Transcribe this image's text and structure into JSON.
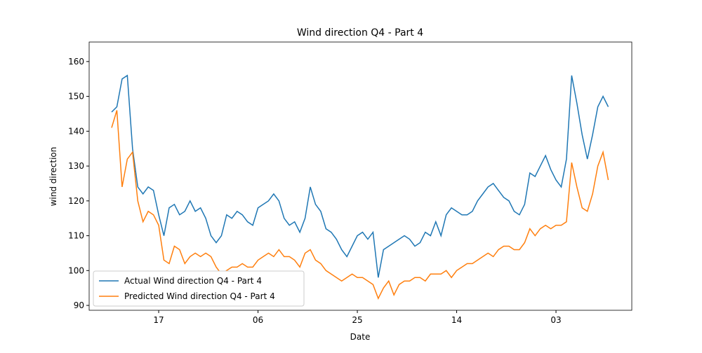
{
  "chart_data": {
    "type": "line",
    "title": "Wind direction Q4 - Part 4",
    "x_label": "Date",
    "y_label": "wind direction",
    "x": [
      -9,
      -8,
      -7,
      -6,
      -5,
      -4,
      -3,
      -2,
      -1,
      0,
      1,
      2,
      3,
      4,
      5,
      6,
      7,
      8,
      9,
      10,
      11,
      12,
      13,
      14,
      15,
      16,
      17,
      18,
      19,
      20,
      21,
      22,
      23,
      24,
      25,
      26,
      27,
      28,
      29,
      30,
      31,
      32,
      33,
      34,
      35,
      36,
      37,
      38,
      39,
      40,
      41,
      42,
      43,
      44,
      45,
      46,
      47,
      48,
      49,
      50,
      51,
      52,
      53,
      54,
      55,
      56,
      57,
      58,
      59,
      60,
      61,
      62,
      63,
      64,
      65,
      66,
      67,
      68,
      69,
      70,
      71,
      72,
      73,
      74,
      75,
      76,
      77,
      78,
      79,
      80,
      81,
      82,
      83,
      84,
      85,
      86
    ],
    "series": [
      {
        "name": "Actual Wind direction Q4 - Part 4",
        "color": "#1f77b4",
        "values": [
          145.5,
          147,
          155,
          156,
          135,
          124,
          122,
          124,
          123,
          116,
          110,
          118,
          119,
          116,
          117,
          120,
          117,
          118,
          115,
          110,
          108,
          110,
          116,
          115,
          117,
          116,
          114,
          113,
          118,
          119,
          120,
          122,
          120,
          115,
          113,
          114,
          111,
          115,
          124,
          119,
          117,
          112,
          111,
          109,
          106,
          104,
          107,
          110,
          111,
          109,
          111,
          98,
          106,
          107,
          108,
          109,
          110,
          109,
          107,
          108,
          111,
          110,
          114,
          110,
          116,
          118,
          117,
          116,
          116,
          117,
          120,
          122,
          124,
          125,
          123,
          121,
          120,
          117,
          116,
          119,
          128,
          127,
          130,
          133,
          129,
          126,
          124,
          132,
          156,
          148,
          139,
          132,
          139,
          147,
          150,
          147
        ]
      },
      {
        "name": "Predicted Wind direction Q4 - Part 4",
        "color": "#ff7f0e",
        "values": [
          141,
          146,
          124,
          132,
          134,
          120,
          114,
          117,
          116,
          113,
          103,
          102,
          107,
          106,
          102,
          104,
          105,
          104,
          105,
          104,
          101,
          99,
          100,
          101,
          101,
          102,
          101,
          101,
          103,
          104,
          105,
          104,
          106,
          104,
          104,
          103,
          101,
          105,
          106,
          103,
          102,
          100,
          99,
          98,
          97,
          98,
          99,
          98,
          98,
          97,
          96,
          92,
          95,
          97,
          93,
          96,
          97,
          97,
          98,
          98,
          97,
          99,
          99,
          99,
          100,
          98,
          100,
          101,
          102,
          102,
          103,
          104,
          105,
          104,
          106,
          107,
          107,
          106,
          106,
          108,
          112,
          110,
          112,
          113,
          112,
          113,
          113,
          114,
          131,
          124,
          118,
          117,
          122,
          130,
          134,
          126
        ]
      }
    ],
    "xlim": [
      -13.3,
      90.5
    ],
    "ylim": [
      88.6,
      165.6
    ],
    "xticks": [
      {
        "value": 0,
        "label": "17"
      },
      {
        "value": 19,
        "label": "06"
      },
      {
        "value": 38,
        "label": "25"
      },
      {
        "value": 57,
        "label": "14"
      },
      {
        "value": 76,
        "label": "03"
      }
    ],
    "yticks": [
      90,
      100,
      110,
      120,
      130,
      140,
      150,
      160
    ],
    "legend": "lower left"
  }
}
